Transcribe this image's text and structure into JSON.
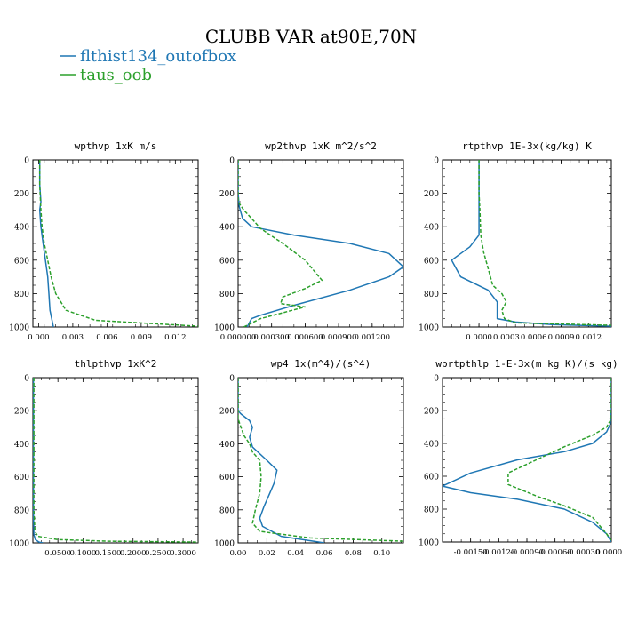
{
  "title": "CLUBB VAR at90E,70N",
  "legend": [
    {
      "name": "flthist134_outofbox",
      "color": "#1f77b4",
      "dash": "solid"
    },
    {
      "name": "taus_oob",
      "color": "#2ca02c",
      "dash": "dashed"
    }
  ],
  "chart_data": [
    {
      "type": "line",
      "title": "wpthvp  1xK m/s",
      "xlim": [
        -0.0005,
        0.014
      ],
      "ylim": [
        1000,
        0
      ],
      "xticks": [
        0.0,
        0.003,
        0.006,
        0.009,
        0.012
      ],
      "xtick_labels": [
        "0.000",
        "0.003",
        "0.006",
        "0.009",
        "0.012"
      ],
      "yticks": [
        0,
        200,
        400,
        600,
        800,
        1000
      ],
      "ytick_labels": [
        "0",
        "200",
        "400",
        "600",
        "800",
        "1000"
      ],
      "series": [
        {
          "name": "flthist134_outofbox",
          "x": [
            0.0001,
            0.0001,
            0.0002,
            0.0001,
            0.0002,
            0.0004,
            0.0006,
            0.0008,
            0.0009,
            0.001,
            0.0013
          ],
          "y": [
            0,
            150,
            250,
            300,
            400,
            500,
            600,
            700,
            800,
            900,
            1000
          ]
        },
        {
          "name": "taus_oob",
          "x": [
            0.0001,
            0.0001,
            0.0002,
            0.0003,
            0.0005,
            0.0008,
            0.0011,
            0.0015,
            0.0024,
            0.005,
            0.014
          ],
          "y": [
            0,
            150,
            300,
            400,
            500,
            600,
            700,
            800,
            900,
            960,
            995
          ]
        }
      ]
    },
    {
      "type": "line",
      "title": "wp2thvp  1xK m^2/s^2",
      "xlim": [
        0,
        0.00148
      ],
      "ylim": [
        1000,
        0
      ],
      "xticks": [
        0,
        0.0003,
        0.0006,
        0.0009,
        0.0012
      ],
      "xtick_labels": [
        "0.000000",
        "0.000300",
        "0.000600",
        "0.000900",
        "0.001200"
      ],
      "yticks": [
        0,
        200,
        400,
        600,
        800,
        1000
      ],
      "ytick_labels": [
        "0",
        "200",
        "400",
        "600",
        "800",
        "1000"
      ],
      "series": [
        {
          "name": "flthist134_outofbox",
          "x": [
            0,
            0,
            1e-05,
            4e-05,
            0.00012,
            0.0005,
            0.001,
            0.00135,
            0.00148,
            0.00135,
            0.001,
            0.0005,
            0.0002,
            0.00012,
            8e-05
          ],
          "y": [
            0,
            200,
            280,
            350,
            400,
            450,
            500,
            560,
            640,
            700,
            780,
            870,
            930,
            950,
            1000
          ]
        },
        {
          "name": "taus_oob",
          "x": [
            0,
            0,
            5e-05,
            0.00012,
            0.0002,
            0.0004,
            0.0006,
            0.00075,
            0.0006,
            0.0004,
            0.00038,
            0.0006,
            0.0002,
            5e-05
          ],
          "y": [
            0,
            250,
            300,
            350,
            410,
            500,
            600,
            720,
            770,
            820,
            860,
            880,
            950,
            1000
          ]
        }
      ]
    },
    {
      "type": "line",
      "title": "rtpthvp  1E-3x(kg/kg) K",
      "xlim": [
        -0.0004,
        0.00145
      ],
      "ylim": [
        1000,
        0
      ],
      "xticks": [
        0.0,
        0.0003,
        0.0006,
        0.0009,
        0.0012
      ],
      "xtick_labels": [
        "0.0000",
        "0.0003",
        "0.0006",
        "0.0009",
        "0.0012"
      ],
      "yticks": [
        0,
        200,
        400,
        600,
        800,
        1000
      ],
      "ytick_labels": [
        "0",
        "200",
        "400",
        "600",
        "800",
        "1000"
      ],
      "series": [
        {
          "name": "flthist134_outofbox",
          "x": [
            0,
            0,
            0,
            0,
            -0.0001,
            -0.0003,
            -0.0002,
            0.0001,
            0.0002,
            0.0002,
            0.0002,
            0.0004,
            0.0008,
            0.00145
          ],
          "y": [
            0,
            200,
            300,
            450,
            520,
            600,
            700,
            780,
            850,
            900,
            950,
            970,
            985,
            995
          ]
        },
        {
          "name": "taus_oob",
          "x": [
            0,
            0,
            1e-05,
            2e-05,
            5e-05,
            0.0001,
            0.00015,
            0.00025,
            0.0003,
            0.00025,
            0.00028,
            0.0004,
            0.00145
          ],
          "y": [
            0,
            200,
            300,
            450,
            550,
            650,
            750,
            800,
            850,
            900,
            950,
            975,
            990
          ]
        }
      ]
    },
    {
      "type": "line",
      "title": "thlpthvp  1xK^2",
      "xlim": [
        0,
        0.33
      ],
      "ylim": [
        1000,
        0
      ],
      "xticks": [
        0.05,
        0.1,
        0.15,
        0.2,
        0.25,
        0.3
      ],
      "xtick_labels": [
        "0.0500",
        "0.1000",
        "0.1500",
        "0.2000",
        "0.2500",
        "0.3000"
      ],
      "yticks": [
        0,
        200,
        400,
        600,
        800,
        1000
      ],
      "ytick_labels": [
        "0",
        "200",
        "400",
        "600",
        "800",
        "1000"
      ],
      "series": [
        {
          "name": "flthist134_outofbox",
          "x": [
            0.001,
            0.001,
            0.001,
            0.002,
            0.005,
            0.012,
            0.02
          ],
          "y": [
            0,
            400,
            800,
            950,
            980,
            995,
            1000
          ]
        },
        {
          "name": "taus_oob",
          "x": [
            0.002,
            0.002,
            0.002,
            0.004,
            0.01,
            0.05,
            0.15,
            0.33
          ],
          "y": [
            0,
            400,
            800,
            930,
            960,
            980,
            990,
            995
          ]
        }
      ]
    },
    {
      "type": "line",
      "title": "wp4  1x(m^4)/(s^4)",
      "xlim": [
        0,
        0.115
      ],
      "ylim": [
        1000,
        0
      ],
      "xticks": [
        0.0,
        0.02,
        0.04,
        0.06,
        0.08,
        0.1
      ],
      "xtick_labels": [
        "0.00",
        "0.02",
        "0.04",
        "0.06",
        "0.08",
        "0.10"
      ],
      "yticks": [
        0,
        200,
        400,
        600,
        800,
        1000
      ],
      "ytick_labels": [
        "0",
        "200",
        "400",
        "600",
        "800",
        "1000"
      ],
      "series": [
        {
          "name": "flthist134_outofbox",
          "x": [
            0,
            0,
            0.002,
            0.008,
            0.01,
            0.008,
            0.01,
            0.02,
            0.027,
            0.025,
            0.022,
            0.018,
            0.015,
            0.017,
            0.03,
            0.06
          ],
          "y": [
            0,
            200,
            220,
            260,
            300,
            360,
            420,
            500,
            560,
            640,
            700,
            780,
            850,
            900,
            960,
            1000
          ]
        },
        {
          "name": "taus_oob",
          "x": [
            0,
            0,
            0.002,
            0.004,
            0.008,
            0.01,
            0.015,
            0.016,
            0.015,
            0.012,
            0.01,
            0.015,
            0.05,
            0.115
          ],
          "y": [
            0,
            250,
            300,
            350,
            400,
            450,
            500,
            600,
            700,
            800,
            880,
            930,
            970,
            990
          ]
        }
      ]
    },
    {
      "type": "line",
      "title": "wprtpthlp  1-E-3x(m kg K)/(s kg)",
      "xlim": [
        -0.0018,
        0.0
      ],
      "ylim": [
        1000,
        0
      ],
      "xticks": [
        -0.0015,
        -0.0012,
        -0.0009,
        -0.0006,
        -0.0003,
        0.0
      ],
      "xtick_labels": [
        "-0.00150",
        "-0.00120",
        "-0.00090",
        "-0.00060",
        "-0.00030",
        "0.00000"
      ],
      "yticks": [
        0,
        200,
        400,
        600,
        800,
        1000
      ],
      "ytick_labels": [
        "0",
        "200",
        "400",
        "600",
        "800",
        "1000"
      ],
      "series": [
        {
          "name": "flthist134_outofbox",
          "x": [
            0,
            0,
            -1e-05,
            -5e-05,
            -0.0002,
            -0.0005,
            -0.001,
            -0.0015,
            -0.0018,
            -0.0015,
            -0.001,
            -0.0005,
            -0.0002,
            -5e-05,
            0
          ],
          "y": [
            0,
            200,
            280,
            330,
            400,
            450,
            500,
            580,
            660,
            700,
            740,
            800,
            880,
            950,
            1000
          ]
        },
        {
          "name": "taus_oob",
          "x": [
            0,
            0,
            -5e-05,
            -0.0002,
            -0.0005,
            -0.0008,
            -0.0011,
            -0.0011,
            -0.0008,
            -0.0005,
            -0.0002,
            -5e-05,
            0
          ],
          "y": [
            0,
            250,
            300,
            350,
            420,
            500,
            580,
            650,
            720,
            780,
            850,
            950,
            990
          ]
        }
      ]
    }
  ]
}
